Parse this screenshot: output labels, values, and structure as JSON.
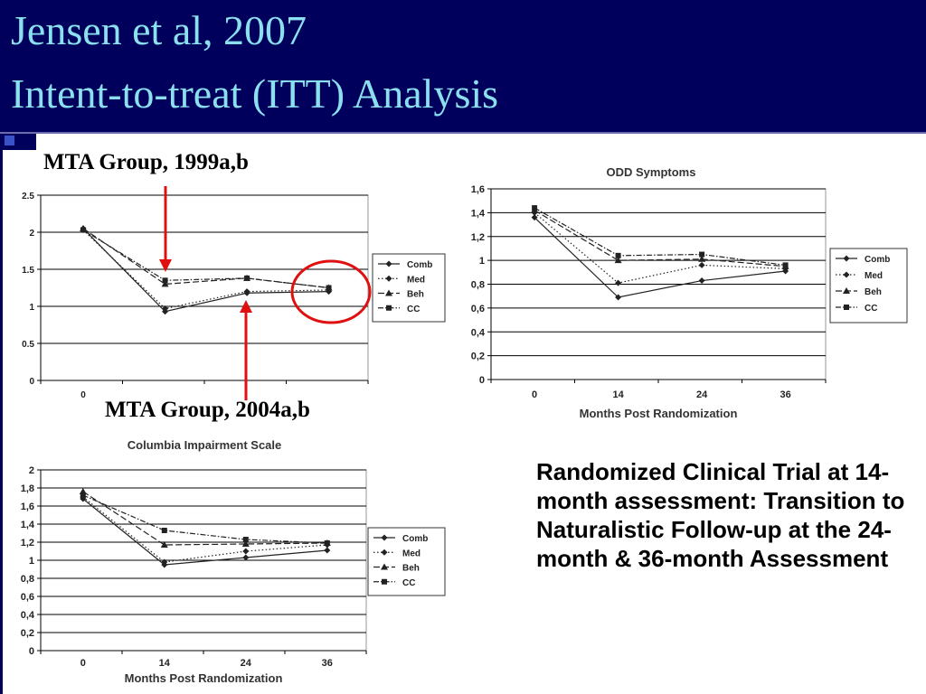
{
  "header": {
    "title_line1": "Jensen et al, 2007",
    "title_line2": "Intent-to-treat (ITT) Analysis",
    "background_color": "#00005c",
    "title_color": "#8be0f0"
  },
  "labels": {
    "mta_1999": "MTA Group, 1999a,b",
    "mta_2004": "MTA Group, 2004a,b"
  },
  "body_text": "Randomized Clinical Trial at 14-month assessment: Transition to Naturalistic Follow-up at the 24-month & 36-month Assessment",
  "annotation_colors": {
    "arrow": "#e01010",
    "circle": "#e01010"
  },
  "chart_data": [
    {
      "type": "line",
      "title": "",
      "xlabel": "",
      "ylabel": "",
      "x": [
        "0",
        "14",
        "24",
        "36"
      ],
      "x_tick_labels": [
        "0"
      ],
      "y_ticks": [
        "0",
        "0.5",
        "1",
        "1.5",
        "2",
        "2.5"
      ],
      "ylim": [
        0,
        2.5
      ],
      "grid": true,
      "legend_position": "right",
      "series": [
        {
          "name": "Comb",
          "values": [
            2.05,
            0.93,
            1.18,
            1.2
          ]
        },
        {
          "name": "Med",
          "values": [
            2.03,
            0.97,
            1.2,
            1.22
          ]
        },
        {
          "name": "Beh",
          "values": [
            2.05,
            1.3,
            1.38,
            1.25
          ]
        },
        {
          "name": "CC",
          "values": [
            2.03,
            1.35,
            1.38,
            1.25
          ]
        }
      ]
    },
    {
      "type": "line",
      "title": "ODD Symptoms",
      "xlabel": "Months Post Randomization",
      "ylabel": "",
      "x": [
        "0",
        "14",
        "24",
        "36"
      ],
      "x_tick_labels": [
        "0",
        "14",
        "24",
        "36"
      ],
      "y_ticks": [
        "0",
        "0,2",
        "0,4",
        "0,6",
        "0,8",
        "1",
        "1,2",
        "1,4",
        "1,6"
      ],
      "ylim": [
        0,
        1.6
      ],
      "grid": true,
      "legend_position": "right",
      "series": [
        {
          "name": "Comb",
          "values": [
            1.36,
            0.69,
            0.83,
            0.91
          ]
        },
        {
          "name": "Med",
          "values": [
            1.4,
            0.81,
            0.96,
            0.93
          ]
        },
        {
          "name": "Beh",
          "values": [
            1.42,
            1.0,
            1.01,
            0.95
          ]
        },
        {
          "name": "CC",
          "values": [
            1.44,
            1.04,
            1.05,
            0.96
          ]
        }
      ]
    },
    {
      "type": "line",
      "title": "Columbia Impairment Scale",
      "xlabel": "Months Post Randomization",
      "ylabel": "",
      "x": [
        "0",
        "14",
        "24",
        "36"
      ],
      "x_tick_labels": [
        "0",
        "14",
        "24",
        "36"
      ],
      "y_ticks": [
        "0",
        "0,2",
        "0,4",
        "0,6",
        "0,8",
        "1",
        "1,2",
        "1,4",
        "1,6",
        "1,8",
        "2"
      ],
      "ylim": [
        0,
        2
      ],
      "grid": true,
      "legend_position": "right",
      "series": [
        {
          "name": "Comb",
          "values": [
            1.68,
            0.95,
            1.03,
            1.11
          ]
        },
        {
          "name": "Med",
          "values": [
            1.7,
            0.98,
            1.1,
            1.17
          ]
        },
        {
          "name": "Beh",
          "values": [
            1.76,
            1.17,
            1.18,
            1.19
          ]
        },
        {
          "name": "CC",
          "values": [
            1.72,
            1.33,
            1.23,
            1.19
          ]
        }
      ]
    }
  ]
}
